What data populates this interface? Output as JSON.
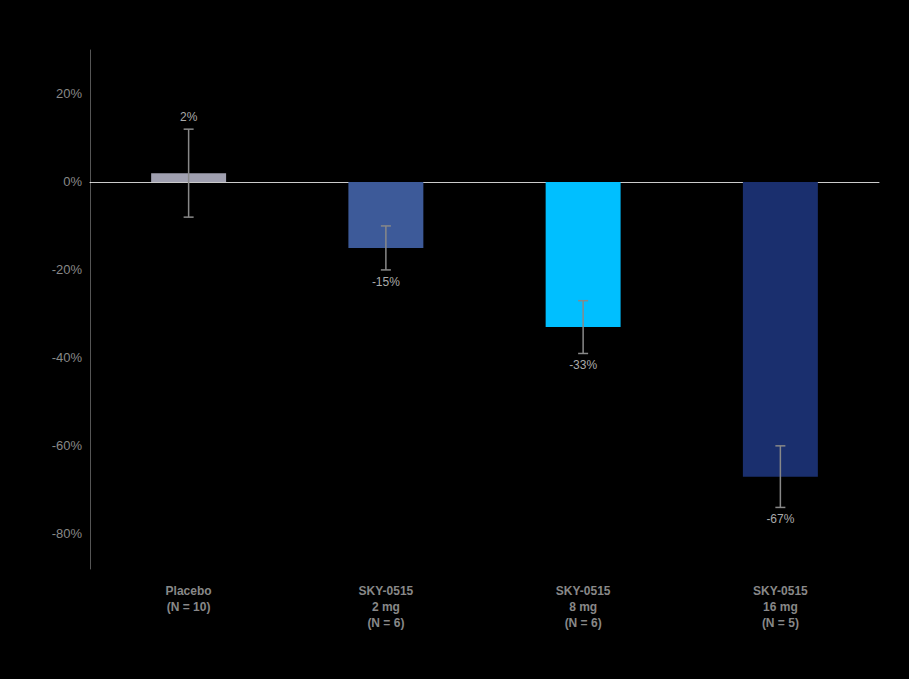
{
  "chart_data": {
    "type": "bar",
    "categories": [
      "Placebo\n(N = 10)",
      "SKY-0515\n2 mg\n(N = 6)",
      "SKY-0515\n8 mg\n(N = 6)",
      "SKY-0515\n16 mg\n(N = 5)"
    ],
    "values": [
      2,
      -15,
      -33,
      -67
    ],
    "errors": [
      10,
      5,
      6,
      7
    ],
    "value_labels": [
      "2%",
      "-15%",
      "-33%",
      "-67%"
    ],
    "data_labels": true,
    "colors": [
      "#a0a0b0",
      "#3d5a99",
      "#00bfff",
      "#1a2f6e"
    ],
    "ylim": [
      -88,
      30
    ],
    "yticks": [
      {
        "value": 20,
        "label": "20%"
      },
      {
        "value": 0,
        "label": "0%"
      },
      {
        "value": -20,
        "label": "-20%"
      },
      {
        "value": -40,
        "label": "-40%"
      },
      {
        "value": -60,
        "label": "-60%"
      },
      {
        "value": -80,
        "label": "-80%"
      }
    ],
    "grid": false
  }
}
